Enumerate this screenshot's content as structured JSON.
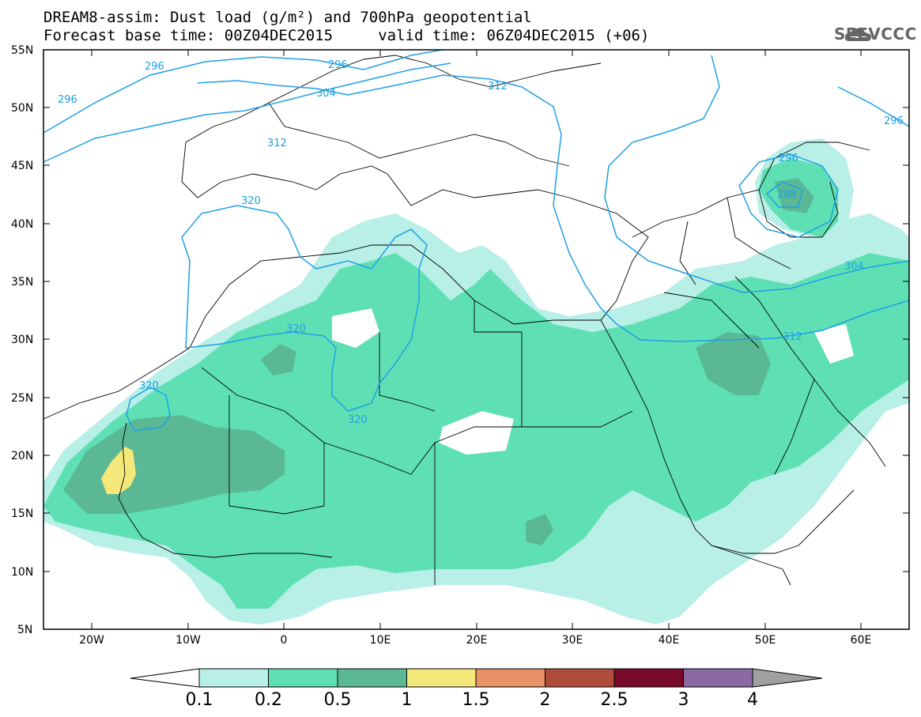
{
  "header": {
    "line1": "DREAM8-assim: Dust load (g/m²) and 700hPa geopotential",
    "line2": "Forecast base time: 00Z04DEC2015     valid time: 06Z04DEC2015 (+06)"
  },
  "logo": {
    "text": "SEEVCCC",
    "icon": "cloud-icon"
  },
  "map": {
    "lat_labels": [
      "55N",
      "50N",
      "45N",
      "40N",
      "35N",
      "30N",
      "25N",
      "20N",
      "15N",
      "10N",
      "5N"
    ],
    "lon_labels": [
      "20W",
      "10W",
      "0",
      "10E",
      "20E",
      "30E",
      "40E",
      "50E",
      "60E"
    ],
    "isoline_color": "#1ea0e6",
    "isoline_labels": [
      "296",
      "296",
      "296",
      "304",
      "312",
      "312",
      "296",
      "296",
      "288",
      "304",
      "312",
      "320",
      "320",
      "320",
      "320"
    ]
  },
  "colorbar": {
    "colors": [
      "#ffffff",
      "#b8efe6",
      "#5fe0b4",
      "#5ab894",
      "#f5e87a",
      "#e89066",
      "#b04c3c",
      "#7a0a2a",
      "#8a6aa0",
      "#a0a0a0"
    ],
    "labels": [
      "0.1",
      "0.2",
      "0.5",
      "1",
      "1.5",
      "2",
      "2.5",
      "3",
      "4"
    ]
  }
}
